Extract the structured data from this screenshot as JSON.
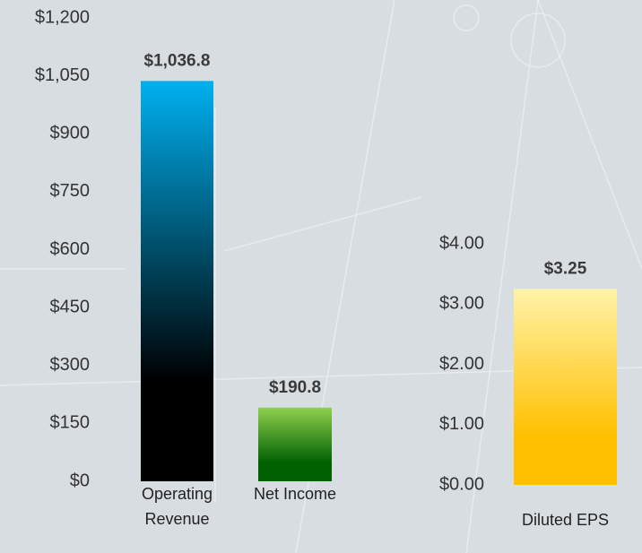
{
  "chart_data": [
    {
      "type": "bar",
      "categories": [
        "Operating Revenue",
        "Net Income"
      ],
      "values": [
        1036.8,
        190.8
      ],
      "value_labels": [
        "$1,036.8",
        "$190.8"
      ],
      "colors": [
        [
          "#00b0f0",
          "#000000"
        ],
        [
          "#8fd04e",
          "#006100"
        ]
      ],
      "ylim": [
        0,
        1200
      ],
      "yticks": [
        {
          "value": 0,
          "label": "$0"
        },
        {
          "value": 150,
          "label": "$150"
        },
        {
          "value": 300,
          "label": "$300"
        },
        {
          "value": 450,
          "label": "$450"
        },
        {
          "value": 600,
          "label": "$600"
        },
        {
          "value": 750,
          "label": "$750"
        },
        {
          "value": 900,
          "label": "$900"
        },
        {
          "value": 1050,
          "label": "$1,050"
        },
        {
          "value": 1200,
          "label": "$1,200"
        }
      ]
    },
    {
      "type": "bar",
      "categories": [
        "Diluted EPS"
      ],
      "values": [
        3.25
      ],
      "value_labels": [
        "$3.25"
      ],
      "colors": [
        [
          "#fff3a8",
          "#ffc000"
        ]
      ],
      "ylim": [
        0,
        4
      ],
      "yticks": [
        {
          "value": 0,
          "label": "$0.00"
        },
        {
          "value": 1,
          "label": "$1.00"
        },
        {
          "value": 2,
          "label": "$2.00"
        },
        {
          "value": 3,
          "label": "$3.00"
        },
        {
          "value": 4,
          "label": "$4.00"
        }
      ]
    }
  ]
}
